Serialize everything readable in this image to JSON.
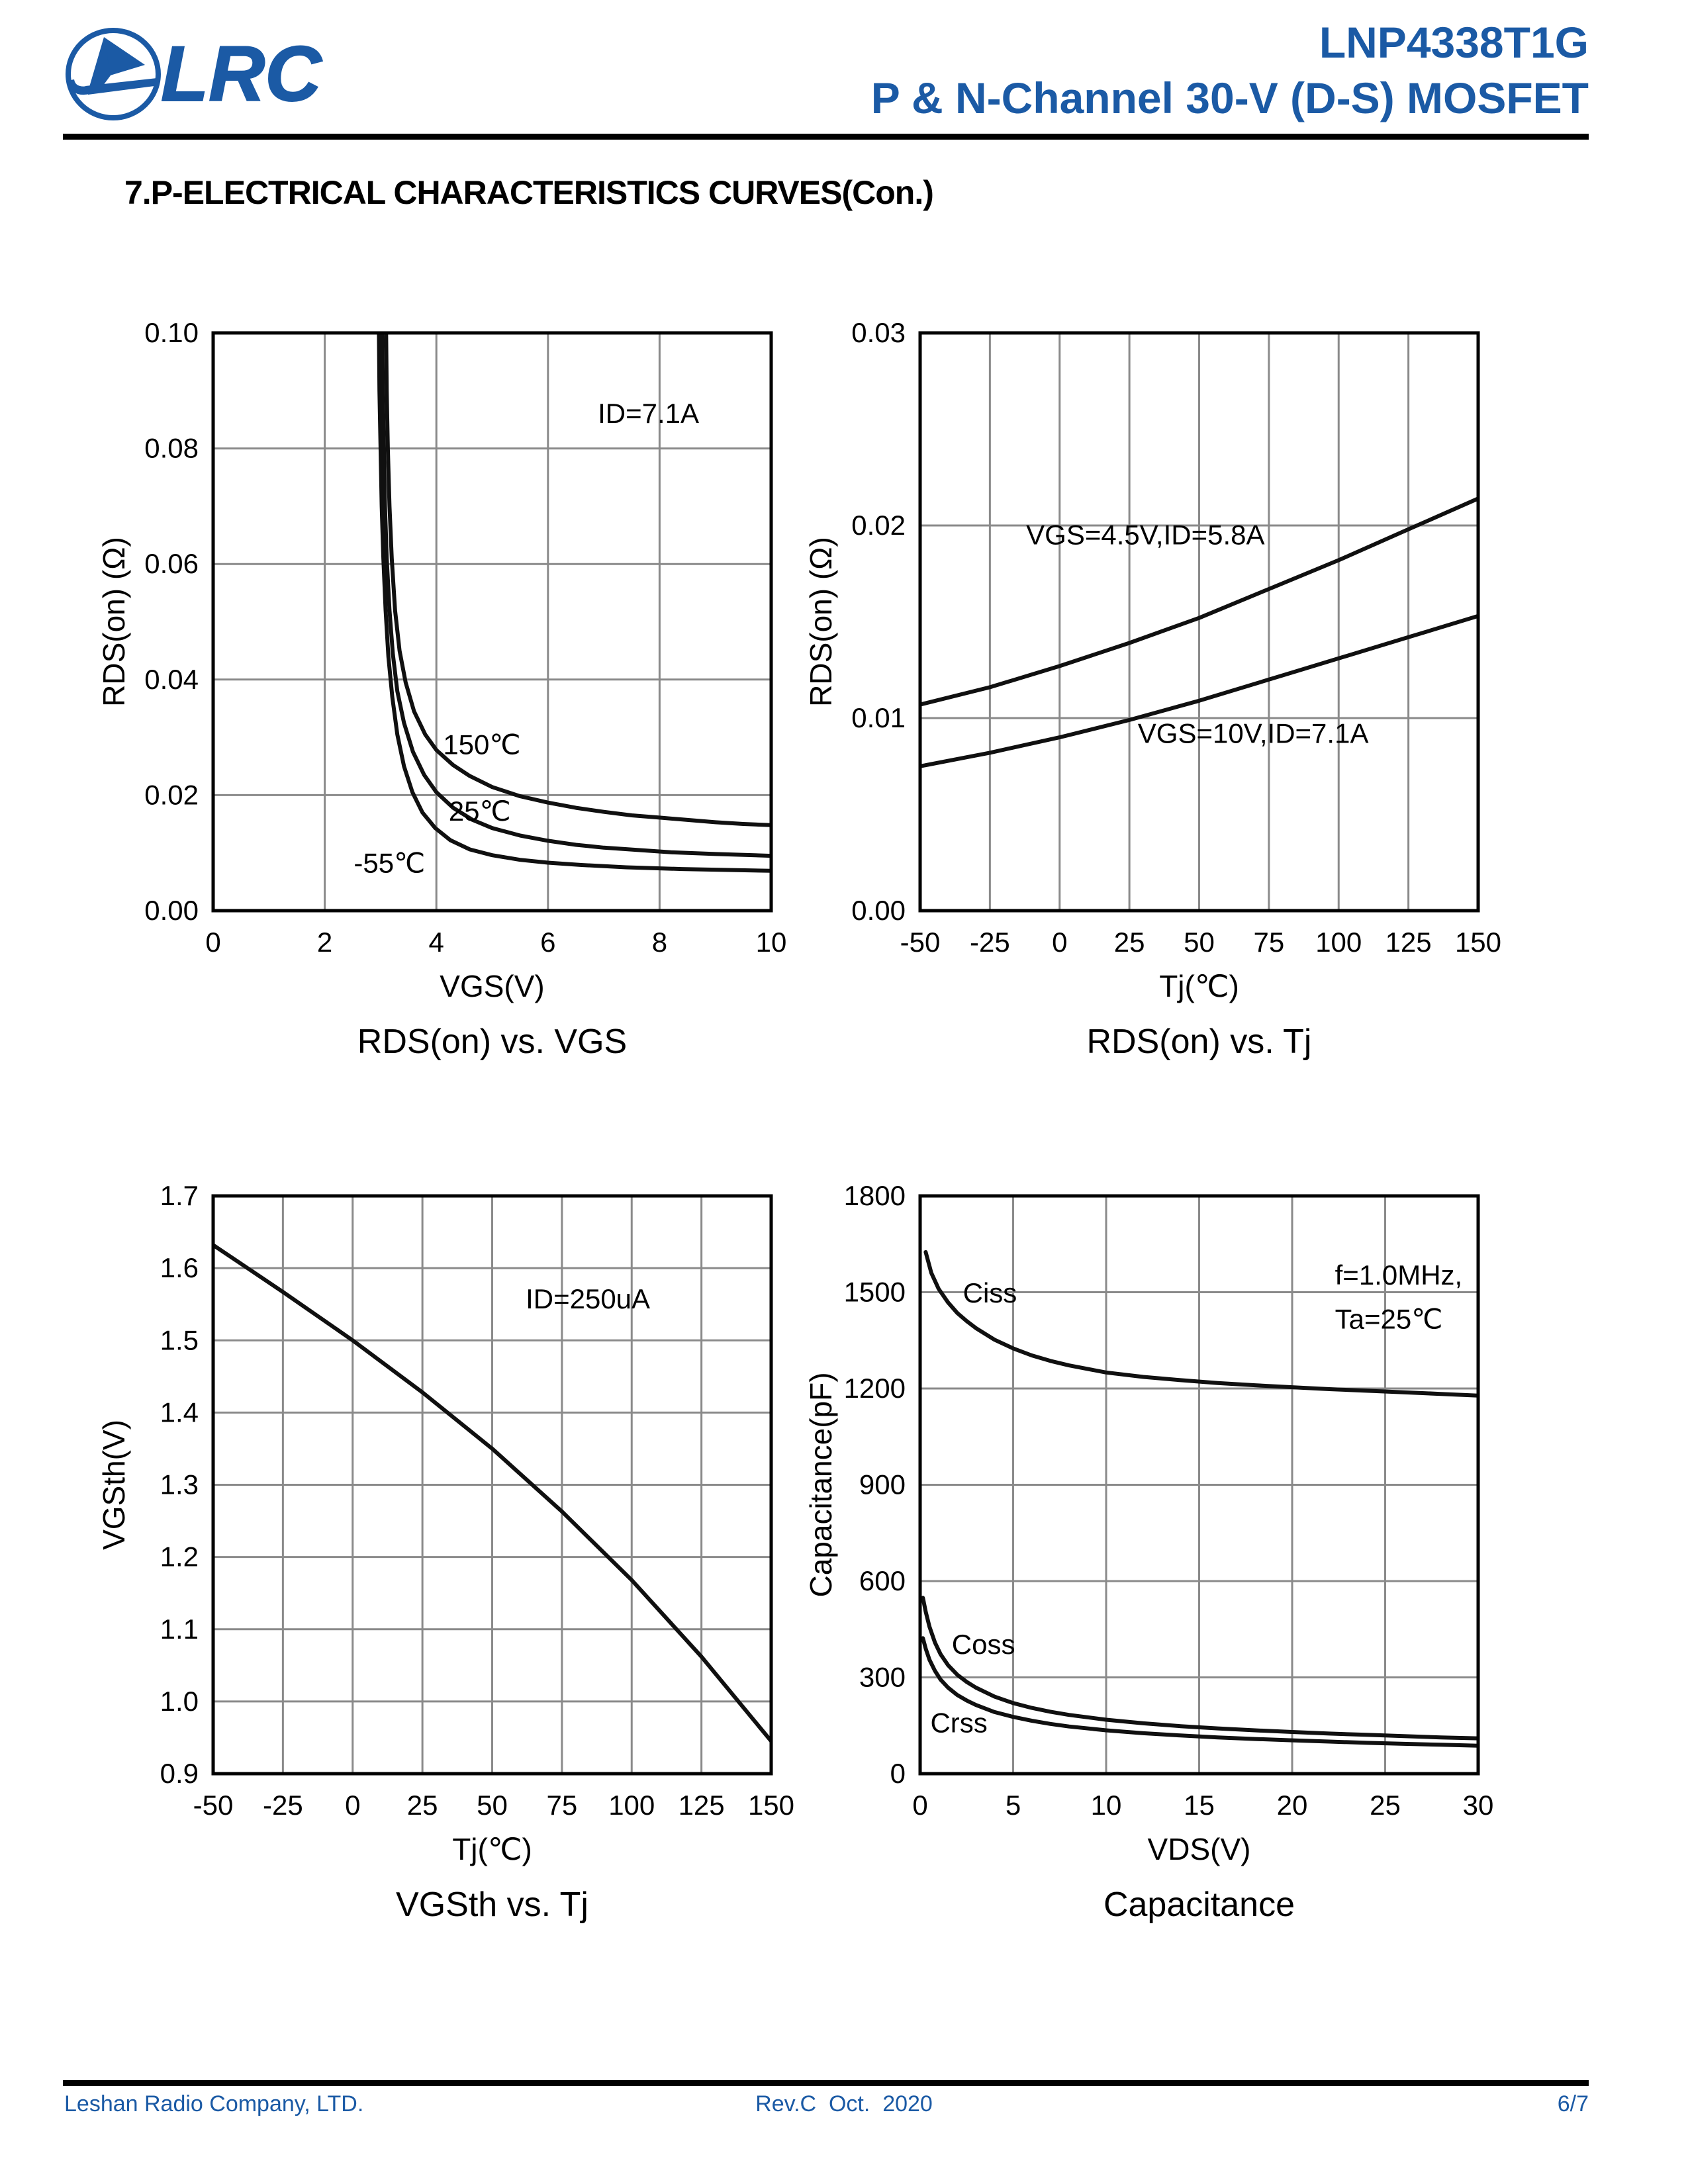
{
  "brand_color": "#1b5aa5",
  "header": {
    "logo_text": "LRC",
    "part_number": "LNP4338T1G",
    "subtitle": "P & N-Channel 30-V (D-S) MOSFET"
  },
  "section_title": "7.P-ELECTRICAL CHARACTERISTICS CURVES(Con.)",
  "footer": {
    "company": "Leshan Radio Company, LTD.",
    "revision": "Rev.C  Oct.  2020",
    "page": "6/7"
  },
  "chart_data": [
    {
      "id": "rdson-vs-vgs",
      "type": "line",
      "title": "RDS(on) vs. VGS",
      "xlabel": "VGS(V)",
      "ylabel": "RDS(on) (Ω)",
      "xlim": [
        0,
        10
      ],
      "ylim": [
        0,
        0.1
      ],
      "grid": true,
      "legend_position": "none",
      "xticks": {
        "values": [
          0,
          2,
          4,
          6,
          8,
          10
        ],
        "labels": [
          "0",
          "2",
          "4",
          "6",
          "8",
          "10"
        ]
      },
      "yticks": {
        "values": [
          0,
          0.02,
          0.04,
          0.06,
          0.08,
          0.1
        ],
        "labels": [
          "0.00",
          "0.02",
          "0.04",
          "0.06",
          "0.08",
          "0.10"
        ]
      },
      "annotations": [
        {
          "text": "ID=7.1A",
          "x": 7.8,
          "y": 0.086,
          "anchor": "middle"
        }
      ],
      "series": [
        {
          "name": "150℃",
          "label": {
            "text": "150℃",
            "x": 4.12,
            "y": 0.0287,
            "anchor": "start"
          },
          "points": [
            [
              3.1,
              0.1
            ],
            [
              3.11,
              0.09
            ],
            [
              3.13,
              0.08
            ],
            [
              3.16,
              0.07
            ],
            [
              3.2,
              0.061
            ],
            [
              3.26,
              0.052
            ],
            [
              3.34,
              0.045
            ],
            [
              3.45,
              0.0395
            ],
            [
              3.6,
              0.0345
            ],
            [
              3.8,
              0.0305
            ],
            [
              4.0,
              0.0278
            ],
            [
              4.3,
              0.0252
            ],
            [
              4.6,
              0.0233
            ],
            [
              5.0,
              0.0214
            ],
            [
              5.5,
              0.0198
            ],
            [
              6.0,
              0.0187
            ],
            [
              6.5,
              0.0178
            ],
            [
              7.0,
              0.0171
            ],
            [
              7.5,
              0.0165
            ],
            [
              8.0,
              0.0161
            ],
            [
              8.5,
              0.0157
            ],
            [
              9.0,
              0.0153
            ],
            [
              9.5,
              0.015
            ],
            [
              10.0,
              0.0148
            ]
          ]
        },
        {
          "name": "25℃",
          "label": {
            "text": "25℃",
            "x": 4.22,
            "y": 0.0172,
            "anchor": "start"
          },
          "points": [
            [
              3.03,
              0.1
            ],
            [
              3.04,
              0.09
            ],
            [
              3.06,
              0.08
            ],
            [
              3.08,
              0.07
            ],
            [
              3.11,
              0.061
            ],
            [
              3.16,
              0.052
            ],
            [
              3.22,
              0.0445
            ],
            [
              3.3,
              0.038
            ],
            [
              3.42,
              0.0325
            ],
            [
              3.58,
              0.0275
            ],
            [
              3.78,
              0.0235
            ],
            [
              4.0,
              0.0205
            ],
            [
              4.3,
              0.0178
            ],
            [
              4.65,
              0.0157
            ],
            [
              5.0,
              0.0143
            ],
            [
              5.5,
              0.013
            ],
            [
              6.0,
              0.0121
            ],
            [
              6.5,
              0.0114
            ],
            [
              7.0,
              0.0109
            ],
            [
              7.6,
              0.0105
            ],
            [
              8.2,
              0.0101
            ],
            [
              9.0,
              0.0098
            ],
            [
              10.0,
              0.0095
            ]
          ]
        },
        {
          "name": "-55℃",
          "label": {
            "text": "-55℃",
            "x": 2.52,
            "y": 0.0082,
            "anchor": "start"
          },
          "points": [
            [
              2.97,
              0.1
            ],
            [
              2.98,
              0.09
            ],
            [
              3.0,
              0.08
            ],
            [
              3.02,
              0.07
            ],
            [
              3.05,
              0.061
            ],
            [
              3.09,
              0.052
            ],
            [
              3.14,
              0.044
            ],
            [
              3.21,
              0.037
            ],
            [
              3.3,
              0.0305
            ],
            [
              3.42,
              0.025
            ],
            [
              3.57,
              0.0205
            ],
            [
              3.75,
              0.017
            ],
            [
              3.98,
              0.0143
            ],
            [
              4.25,
              0.0122
            ],
            [
              4.6,
              0.0106
            ],
            [
              5.0,
              0.0096
            ],
            [
              5.5,
              0.0088
            ],
            [
              6.0,
              0.0083
            ],
            [
              6.6,
              0.0079
            ],
            [
              7.4,
              0.0075
            ],
            [
              8.4,
              0.0072
            ],
            [
              10.0,
              0.0069
            ]
          ]
        }
      ]
    },
    {
      "id": "rdson-vs-tj",
      "type": "line",
      "title": "RDS(on) vs. Tj",
      "xlabel": "Tj(℃)",
      "ylabel": "RDS(on) (Ω)",
      "xlim": [
        -50,
        150
      ],
      "ylim": [
        0,
        0.03
      ],
      "grid": true,
      "legend_position": "none",
      "xticks": {
        "values": [
          -50,
          -25,
          0,
          25,
          50,
          75,
          100,
          125,
          150
        ],
        "labels": [
          "-50",
          "-25",
          "0",
          "25",
          "50",
          "75",
          "100",
          "125",
          "150"
        ]
      },
      "yticks": {
        "values": [
          0,
          0.01,
          0.02,
          0.03
        ],
        "labels": [
          "0.00",
          "0.01",
          "0.02",
          "0.03"
        ]
      },
      "annotations": [],
      "series": [
        {
          "name": "VGS=4.5V,ID=5.8A",
          "label": {
            "text": "VGS=4.5V,ID=5.8A",
            "x": -12,
            "y": 0.0195,
            "anchor": "start"
          },
          "points": [
            [
              -50,
              0.0107
            ],
            [
              -25,
              0.0116
            ],
            [
              0,
              0.0127
            ],
            [
              25,
              0.0139
            ],
            [
              50,
              0.0152
            ],
            [
              75,
              0.0167
            ],
            [
              100,
              0.0182
            ],
            [
              125,
              0.0198
            ],
            [
              150,
              0.0214
            ]
          ]
        },
        {
          "name": "VGS=10V,ID=7.1A",
          "label": {
            "text": "VGS=10V,ID=7.1A",
            "x": 28,
            "y": 0.0092,
            "anchor": "start"
          },
          "points": [
            [
              -50,
              0.0075
            ],
            [
              -25,
              0.0082
            ],
            [
              0,
              0.009
            ],
            [
              25,
              0.0099
            ],
            [
              50,
              0.0109
            ],
            [
              75,
              0.012
            ],
            [
              100,
              0.0131
            ],
            [
              125,
              0.0142
            ],
            [
              150,
              0.0153
            ]
          ]
        }
      ]
    },
    {
      "id": "vgsth-vs-tj",
      "type": "line",
      "title": "VGSth vs. Tj",
      "xlabel": "Tj(℃)",
      "ylabel": "VGSth(V)",
      "xlim": [
        -50,
        150
      ],
      "ylim": [
        0.9,
        1.7
      ],
      "grid": true,
      "legend_position": "none",
      "xticks": {
        "values": [
          -50,
          -25,
          0,
          25,
          50,
          75,
          100,
          125,
          150
        ],
        "labels": [
          "-50",
          "-25",
          "0",
          "25",
          "50",
          "75",
          "100",
          "125",
          "150"
        ]
      },
      "yticks": {
        "values": [
          0.9,
          1.0,
          1.1,
          1.2,
          1.3,
          1.4,
          1.5,
          1.6,
          1.7
        ],
        "labels": [
          "0.9",
          "1.0",
          "1.1",
          "1.2",
          "1.3",
          "1.4",
          "1.5",
          "1.6",
          "1.7"
        ]
      },
      "annotations": [
        {
          "text": "ID=250uA",
          "x": 62,
          "y": 1.557,
          "anchor": "start"
        }
      ],
      "series": [
        {
          "name": "VGSth",
          "points": [
            [
              -50,
              1.632
            ],
            [
              -25,
              1.567
            ],
            [
              0,
              1.5
            ],
            [
              25,
              1.428
            ],
            [
              50,
              1.35
            ],
            [
              75,
              1.263
            ],
            [
              100,
              1.168
            ],
            [
              125,
              1.062
            ],
            [
              150,
              0.945
            ]
          ]
        }
      ]
    },
    {
      "id": "capacitance",
      "type": "line",
      "title": "Capacitance",
      "xlabel": "VDS(V)",
      "ylabel": "Capacitance(pF)",
      "xlim": [
        0,
        30
      ],
      "ylim": [
        0,
        1800
      ],
      "grid": true,
      "legend_position": "none",
      "xticks": {
        "values": [
          0,
          5,
          10,
          15,
          20,
          25,
          30
        ],
        "labels": [
          "0",
          "5",
          "10",
          "15",
          "20",
          "25",
          "30"
        ]
      },
      "yticks": {
        "values": [
          0,
          300,
          600,
          900,
          1200,
          1500,
          1800
        ],
        "labels": [
          "0",
          "300",
          "600",
          "900",
          "1200",
          "1500",
          "1800"
        ]
      },
      "annotations": [
        {
          "text": "f=1.0MHz,",
          "x": 22.3,
          "y": 1553,
          "anchor": "start"
        },
        {
          "text": "Ta=25℃",
          "x": 22.3,
          "y": 1415,
          "anchor": "start"
        }
      ],
      "series": [
        {
          "name": "Ciss",
          "label": {
            "text": "Ciss",
            "x": 2.3,
            "y": 1497,
            "anchor": "start"
          },
          "points": [
            [
              0.3,
              1625
            ],
            [
              0.6,
              1560
            ],
            [
              1.0,
              1510
            ],
            [
              1.5,
              1468
            ],
            [
              2.0,
              1435
            ],
            [
              2.5,
              1410
            ],
            [
              3.0,
              1388
            ],
            [
              4.0,
              1352
            ],
            [
              5.0,
              1325
            ],
            [
              6.0,
              1303
            ],
            [
              7.0,
              1286
            ],
            [
              8.0,
              1272
            ],
            [
              10,
              1250
            ],
            [
              12,
              1236
            ],
            [
              14,
              1226
            ],
            [
              16,
              1217
            ],
            [
              18,
              1210
            ],
            [
              20,
              1204
            ],
            [
              22,
              1198
            ],
            [
              24,
              1193
            ],
            [
              26,
              1188
            ],
            [
              28,
              1183
            ],
            [
              30,
              1178
            ]
          ]
        },
        {
          "name": "Coss",
          "label": {
            "text": "Coss",
            "x": 1.7,
            "y": 402,
            "anchor": "start"
          },
          "points": [
            [
              0.15,
              548
            ],
            [
              0.3,
              505
            ],
            [
              0.5,
              458
            ],
            [
              0.8,
              408
            ],
            [
              1.1,
              372
            ],
            [
              1.5,
              338
            ],
            [
              2.0,
              308
            ],
            [
              2.5,
              286
            ],
            [
              3.0,
              268
            ],
            [
              4.0,
              240
            ],
            [
              5.0,
              220
            ],
            [
              6.0,
              205
            ],
            [
              7.0,
              193
            ],
            [
              8.0,
              183
            ],
            [
              10,
              168
            ],
            [
              12,
              157
            ],
            [
              14,
              148
            ],
            [
              16,
              141
            ],
            [
              18,
              135
            ],
            [
              20,
              130
            ],
            [
              22,
              125
            ],
            [
              24,
              121
            ],
            [
              26,
              117
            ],
            [
              28,
              113
            ],
            [
              30,
              110
            ]
          ]
        },
        {
          "name": "Crss",
          "label": {
            "text": "Crss",
            "x": 0.55,
            "y": 158,
            "anchor": "start"
          },
          "points": [
            [
              0.15,
              422
            ],
            [
              0.3,
              390
            ],
            [
              0.5,
              355
            ],
            [
              0.8,
              320
            ],
            [
              1.1,
              293
            ],
            [
              1.5,
              268
            ],
            [
              2.0,
              245
            ],
            [
              2.5,
              228
            ],
            [
              3.0,
              214
            ],
            [
              4.0,
              192
            ],
            [
              5.0,
              177
            ],
            [
              6.0,
              165
            ],
            [
              7.0,
              155
            ],
            [
              8.0,
              147
            ],
            [
              10,
              135
            ],
            [
              12,
              126
            ],
            [
              14,
              119
            ],
            [
              16,
              113
            ],
            [
              18,
              108
            ],
            [
              20,
              104
            ],
            [
              22,
              100
            ],
            [
              24,
              96
            ],
            [
              26,
              93
            ],
            [
              28,
              90
            ],
            [
              30,
              87
            ]
          ]
        }
      ]
    }
  ]
}
